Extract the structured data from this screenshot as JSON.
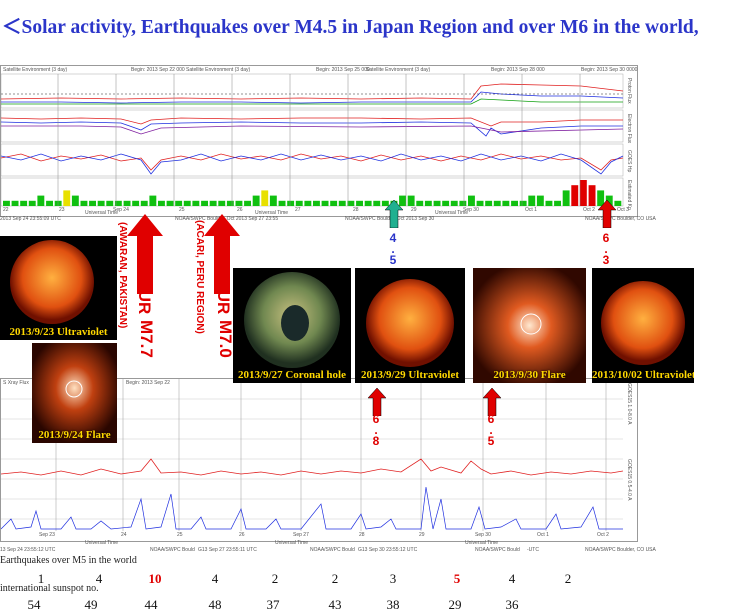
{
  "title": "＜Solar activity, Earthquakes over M4.5 in Japan Region and over M6 in the world,",
  "top_panel": {
    "header_left": "Satellite Environment (3 day)",
    "header_begin1": "Begin: 2013 Sep 22 000",
    "header_mid": "Satellite Environment (3 day)",
    "header_begin2": "Begin: 2013 Sep 25 000",
    "header_right": "Satellite Environment (3 day)",
    "header_begin3": "Begin: 2013 Sep 28 000",
    "header_begin4": "Begin: 2013 Sep 30 0000",
    "right_labels": [
      "Proton Flux",
      "Electron Flux",
      "GOES Hp",
      "Estimated Kp"
    ],
    "x_ticks": [
      "22",
      "23",
      "Sep 24",
      "25",
      "26",
      "27",
      "28",
      "29",
      "Sep 30",
      "Oct 1",
      "Oct 2",
      "Oct 3"
    ],
    "footer": [
      "Universal Time",
      "Universal Time",
      "Universal Time"
    ],
    "footer_updated1": "2013 Sep 24 23:55:09 UTC",
    "footer_updated2": "NOAA/SWPC Boulder, Oct 2013 Sep 27 23:55",
    "footer_updated3": "NOAA/SWPC Boulder, Oct 2013 Sep 30",
    "footer_updated4": "NOAA/SWPC Boulder, CO USA"
  },
  "bottom_panel": {
    "header_left": "S Xray Flux",
    "header_begin1": "Begin: 2013 Sep 22",
    "right_labels": [
      "GOES15 0.5-4.0 A",
      "GOES15 1.0-8.0 A"
    ],
    "x_ticks": [
      "Sep 23",
      "24",
      "25",
      "26",
      "Sep 27",
      "28",
      "29",
      "Sep 30",
      "Oct 1",
      "Oct 2"
    ],
    "footer_axis": [
      "Universal Time",
      "Universal Time",
      "Universal Time"
    ],
    "footer_updated": [
      "13 Sep 24 23:55:12 UTC",
      "NOAA/SWPC Bould",
      "G13 Sep 27 23:55:11 UTC",
      "NOAA/SWPC Bould",
      "G13 Sep 30 23:55:12 UTC",
      "NOAA/SWPC Bould",
      "-UTC",
      "NOAA/SWPC Boulder, CO USA"
    ]
  },
  "images": [
    {
      "caption": "2013/9/23 Ultraviolet",
      "kind": "sun-orange"
    },
    {
      "caption": "2013/9/24 Flare",
      "kind": "coronagraph"
    },
    {
      "caption": "2013/9/27 Coronal hole",
      "kind": "sun-green"
    },
    {
      "caption": "2013/9/29 Ultraviolet",
      "kind": "sun-orange"
    },
    {
      "caption": "2013/9/30 Flare",
      "kind": "coronagraph"
    },
    {
      "caption": "2013/10/02 Ultraviolet",
      "kind": "sun-orange"
    }
  ],
  "annotations": {
    "occur1": {
      "label": "OCCUR",
      "mag": "M7.7",
      "region": "(AWARAN, PAKISTAN)"
    },
    "occur2": {
      "label": "OCCUR",
      "mag": "M7.0",
      "region": "(ACARI, PERU REGION)"
    },
    "arrow_45": {
      "digits": [
        "4",
        ".",
        "5"
      ]
    },
    "arrow_63": {
      "digits": [
        "6",
        ".",
        "3"
      ]
    },
    "arrow_68": {
      "digits": [
        "6",
        ".",
        "8"
      ]
    },
    "arrow_65": {
      "digits": [
        "6",
        ".",
        "5"
      ]
    }
  },
  "earthquakes_label": "Earthquakes over M5 in the world",
  "earthquake_counts": [
    "1",
    "4",
    "10",
    "4",
    "2",
    "2",
    "3",
    "5",
    "4",
    "2"
  ],
  "earthquake_count_colors": [
    "#111111",
    "#111111",
    "#e00000",
    "#111111",
    "#111111",
    "#111111",
    "#111111",
    "#e00000",
    "#111111",
    "#111111"
  ],
  "sunspot_label": "international sunspot no.",
  "sunspot_numbers": [
    "54",
    "49",
    "44",
    "48",
    "37",
    "43",
    "38",
    "29",
    "36"
  ],
  "chart_data": {
    "type": "line",
    "title": "",
    "days": [
      "Sep 22",
      "Sep 23",
      "Sep 24",
      "Sep 25",
      "Sep 26",
      "Sep 27",
      "Sep 28",
      "Sep 29",
      "Sep 30",
      "Oct 1",
      "Oct 2"
    ],
    "earthquakes_over_m5_world": [
      1,
      4,
      10,
      4,
      2,
      2,
      3,
      5,
      4,
      2
    ],
    "international_sunspot_number": [
      54,
      49,
      44,
      48,
      37,
      43,
      38,
      29,
      36
    ],
    "estimated_kp": [
      1,
      1,
      1,
      1,
      2,
      1,
      1,
      3,
      2,
      1,
      1,
      1,
      1,
      1,
      1,
      1,
      1,
      2,
      1,
      1,
      1,
      1,
      1,
      1,
      1,
      1,
      1,
      1,
      1,
      2,
      3,
      2,
      1,
      1,
      1,
      1,
      1,
      1,
      1,
      1,
      1,
      1,
      1,
      1,
      1,
      1,
      2,
      2,
      1,
      1,
      1,
      1,
      1,
      1,
      2,
      1,
      1,
      1,
      1,
      1,
      1,
      2,
      2,
      1,
      1,
      3,
      4,
      5,
      4,
      3,
      2,
      1
    ],
    "kp_colors": [
      "green",
      "yellow",
      "red"
    ]
  }
}
